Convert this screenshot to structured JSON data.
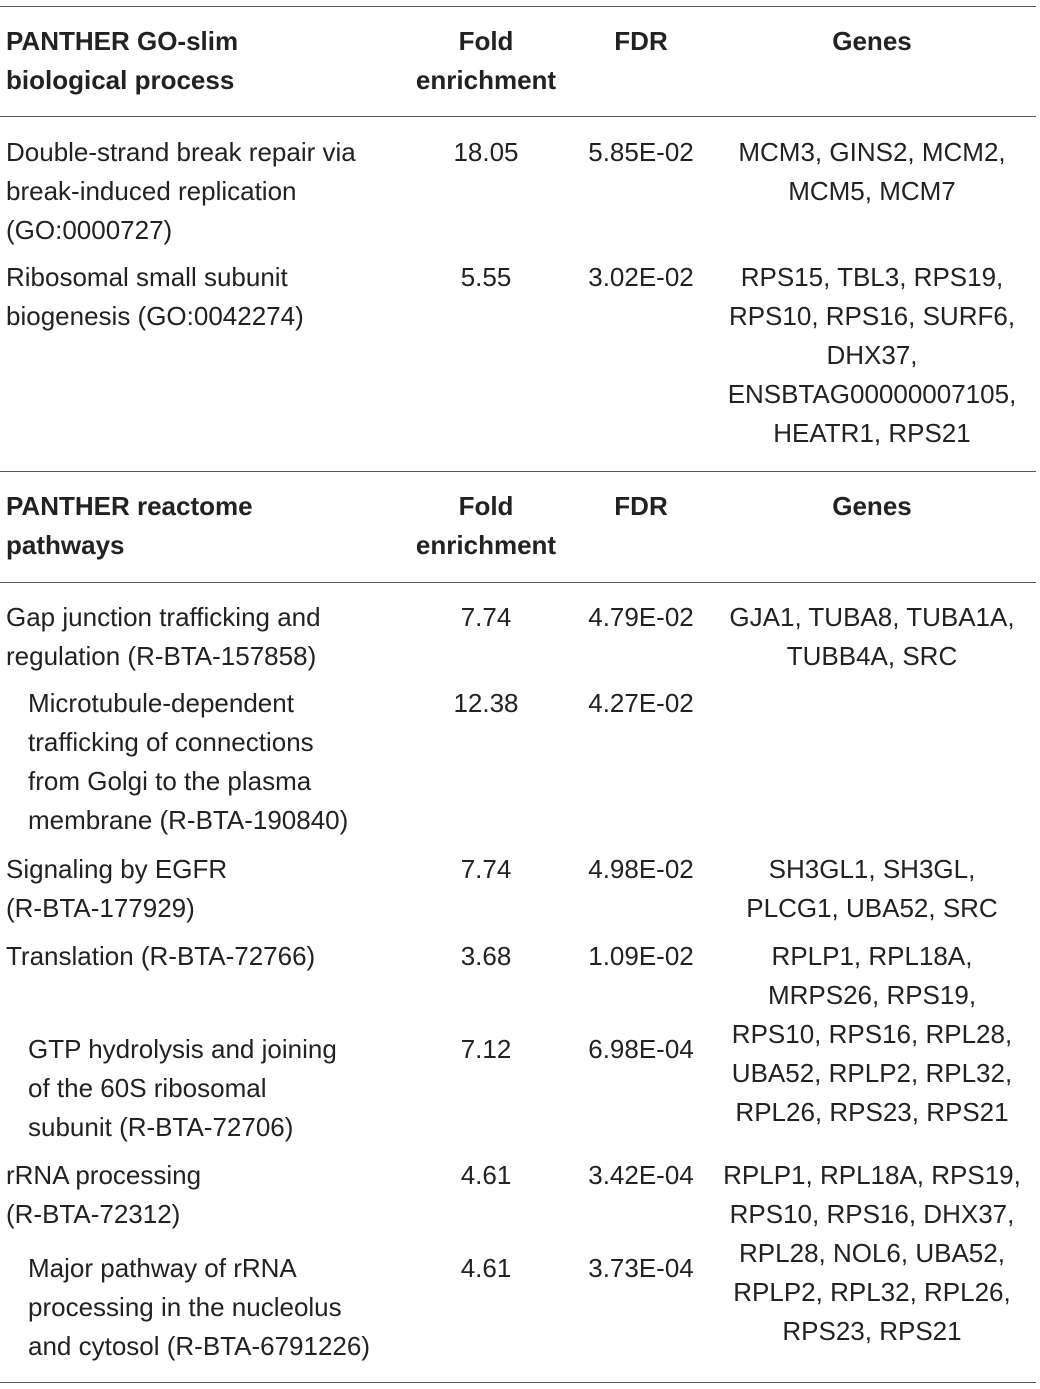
{
  "table": {
    "section1": {
      "header": {
        "category": "PANTHER GO-slim\nbiological process",
        "fold": "Fold\nenrichment",
        "fdr": "FDR",
        "genes": "Genes"
      },
      "rows": [
        {
          "term": "Double-strand break repair via\nbreak-induced replication\n(GO:0000727)",
          "fold": "18.05",
          "fdr": "5.85E-02",
          "genes": "MCM3, GINS2, MCM2,\nMCM5, MCM7"
        },
        {
          "term": "Ribosomal small subunit\nbiogenesis (GO:0042274)",
          "fold": "5.55",
          "fdr": "3.02E-02",
          "genes": "RPS15, TBL3, RPS19,\nRPS10, RPS16, SURF6,\nDHX37,\nENSBTAG00000007105,\nHEATR1, RPS21"
        }
      ]
    },
    "section2": {
      "header": {
        "category": "PANTHER reactome\npathways",
        "fold": "Fold\nenrichment",
        "fdr": "FDR",
        "genes": "Genes"
      },
      "rows": [
        {
          "term": "Gap junction trafficking and\nregulation (R-BTA-157858)",
          "fold": "7.74",
          "fdr": "4.79E-02",
          "genes": "GJA1, TUBA8, TUBA1A,\nTUBB4A, SRC"
        },
        {
          "term": "Microtubule-dependent\ntrafficking of connections\nfrom Golgi to the plasma\nmembrane (R-BTA-190840)",
          "fold": "12.38",
          "fdr": "4.27E-02",
          "genes": ""
        },
        {
          "term": "Signaling by EGFR\n(R-BTA-177929)",
          "fold": "7.74",
          "fdr": "4.98E-02",
          "genes": "SH3GL1, SH3GL,\nPLCG1, UBA52, SRC"
        },
        {
          "term": "Translation (R-BTA-72766)",
          "fold": "3.68",
          "fdr": "1.09E-02",
          "genes": "RPLP1, RPL18A,\nMRPS26, RPS19,\nRPS10, RPS16, RPL28,\nUBA52, RPLP2, RPL32,\nRPL26, RPS23, RPS21"
        },
        {
          "term": "GTP hydrolysis and joining\nof the 60S ribosomal\nsubunit (R-BTA-72706)",
          "fold": "7.12",
          "fdr": "6.98E-04",
          "genes": ""
        },
        {
          "term": "rRNA processing\n(R-BTA-72312)",
          "fold": "4.61",
          "fdr": "3.42E-04",
          "genes": "RPLP1, RPL18A, RPS19,\nRPS10, RPS16, DHX37,\nRPL28, NOL6, UBA52,\nRPLP2, RPL32, RPL26,\nRPS23, RPS21"
        },
        {
          "term": "Major pathway of rRNA\nprocessing in the nucleolus\nand cytosol (R-BTA-6791226)",
          "fold": "4.61",
          "fdr": "3.73E-04",
          "genes": ""
        }
      ]
    }
  }
}
